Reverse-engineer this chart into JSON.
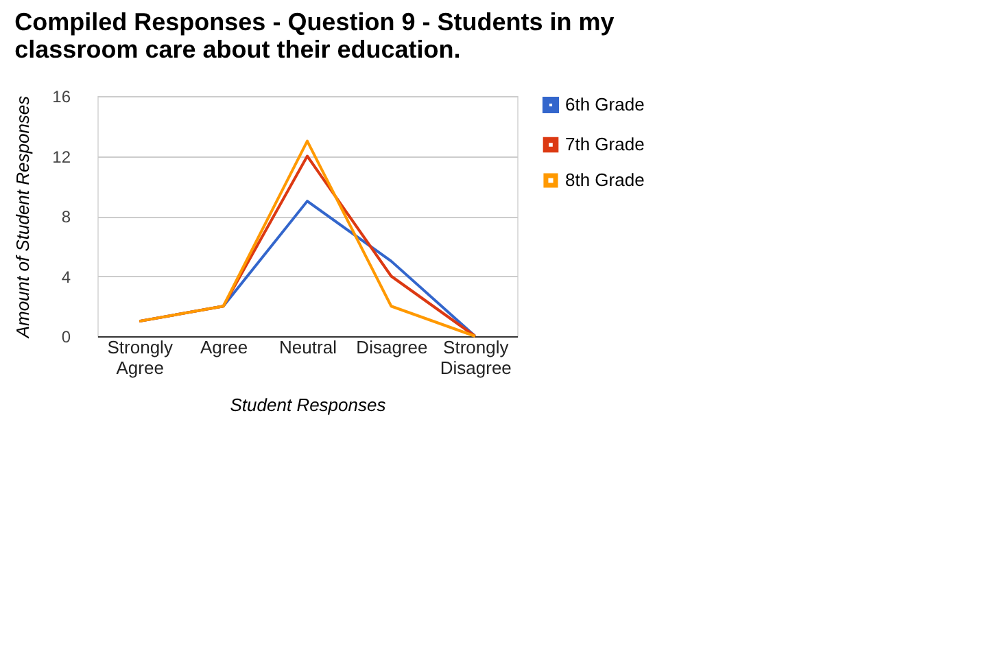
{
  "chart_data": {
    "type": "line",
    "title": "Compiled Responses - Question 9 - Students in my classroom care about their education.",
    "xlabel": "Student Responses",
    "ylabel": "Amount of Student Responses",
    "categories": [
      "Strongly Agree",
      "Agree",
      "Neutral",
      "Disagree",
      "Strongly Disagree"
    ],
    "series": [
      {
        "name": "6th Grade",
        "color": "#3366cc",
        "values": [
          1,
          2,
          9,
          5,
          0
        ]
      },
      {
        "name": "7th Grade",
        "color": "#dc3912",
        "values": [
          1,
          2,
          12,
          4,
          0
        ]
      },
      {
        "name": "8th Grade",
        "color": "#ff9900",
        "values": [
          1,
          2,
          13,
          2,
          0
        ]
      }
    ],
    "ylim": [
      0,
      16
    ],
    "yticks": [
      0,
      4,
      8,
      12,
      16
    ],
    "grid": "y",
    "legend": "top right",
    "marker": "none",
    "line_style": "solid"
  }
}
